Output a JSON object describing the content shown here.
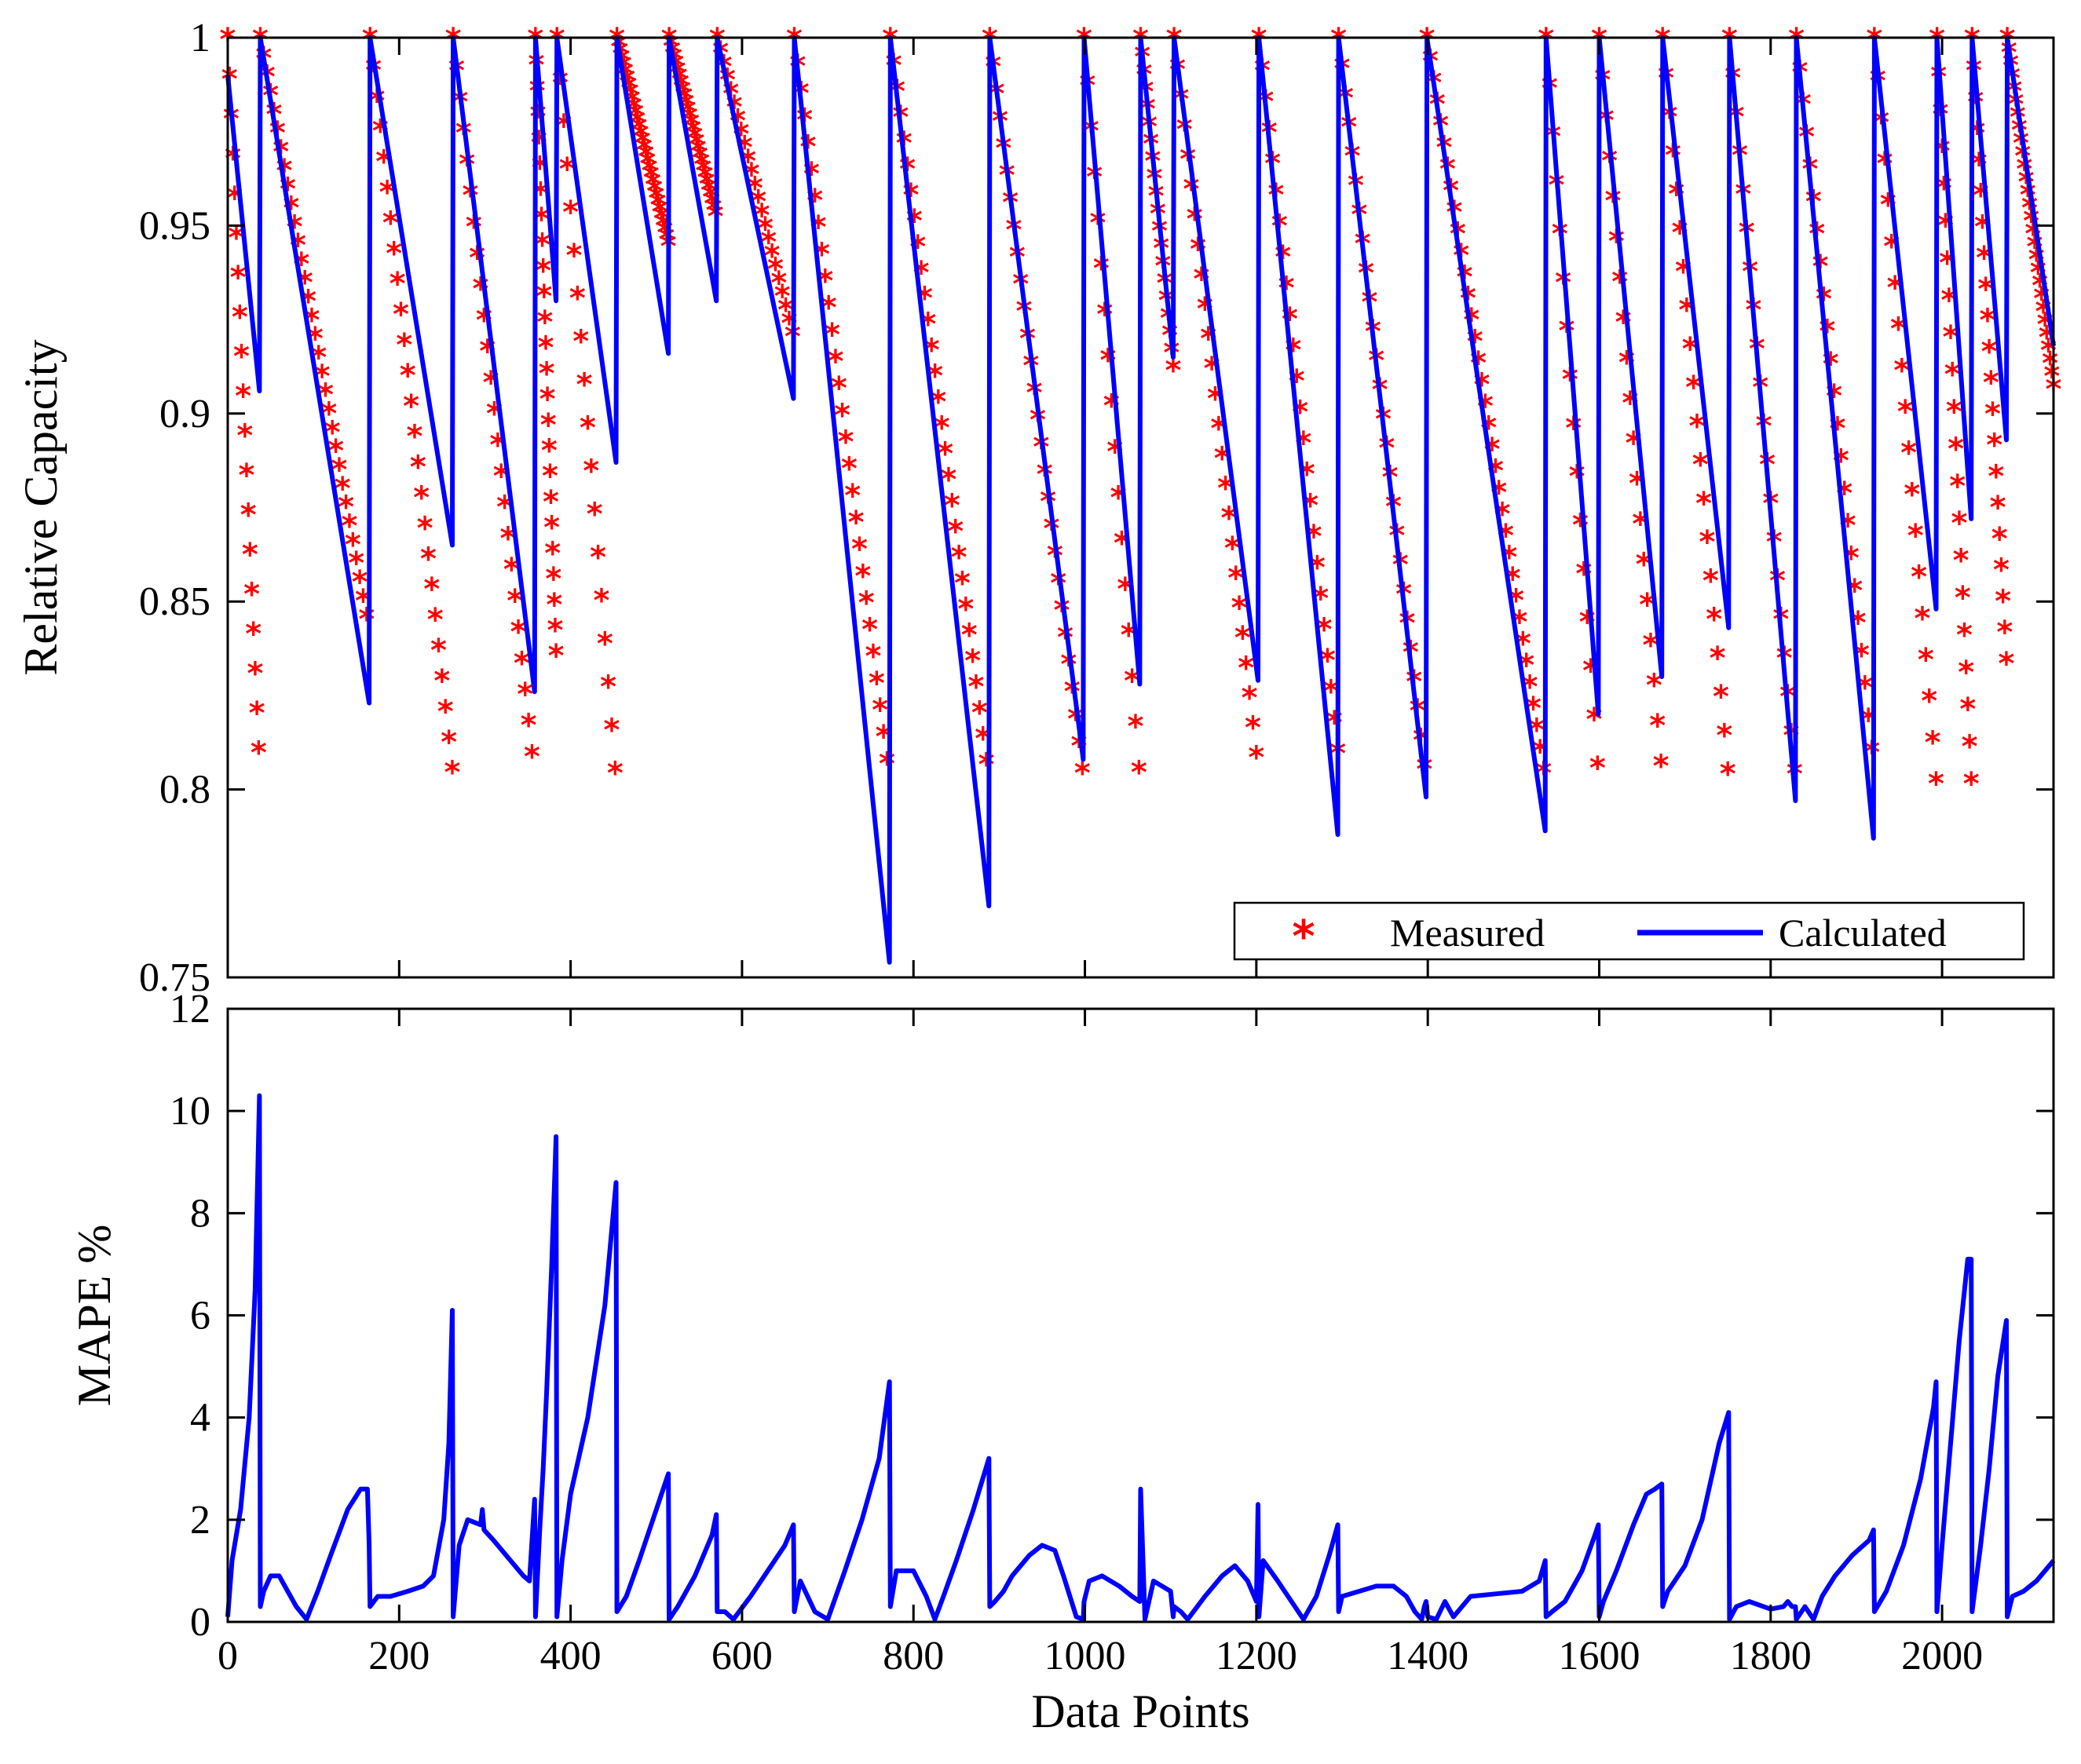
{
  "figure": {
    "xlabel": "Data Points"
  },
  "colors": {
    "measured": "#ff0000",
    "calculated": "#0000ff",
    "axes": "#000000"
  },
  "chart_data": [
    {
      "type": "scatter+line",
      "ylabel": "Relative Capacity",
      "xlim": [
        0,
        2130
      ],
      "ylim": [
        0.75,
        1.0
      ],
      "xticks": [
        200,
        400,
        600,
        800,
        1000,
        1200,
        1400,
        1600,
        1800,
        2000
      ],
      "yticks": [
        0.75,
        0.8,
        0.85,
        0.9,
        0.95,
        1
      ],
      "ytick_labels": [
        "0.75",
        "0.8",
        "0.85",
        "0.9",
        "0.95",
        "1"
      ],
      "legend": {
        "position": "bottom-right",
        "entries": [
          "Measured",
          "Calculated"
        ]
      },
      "cycles": [
        {
          "start": 0,
          "end": 37,
          "m_end": 0.805,
          "c_start": 0.99,
          "c_end": 0.906
        },
        {
          "start": 38,
          "end": 165,
          "m_end": 0.842,
          "c_start": 1.0,
          "c_end": 0.823
        },
        {
          "start": 166,
          "end": 262,
          "m_end": 0.805,
          "c_start": 1.0,
          "c_end": 0.865
        },
        {
          "start": 263,
          "end": 358,
          "m_end": 0.803,
          "c_start": 1.0,
          "c_end": 0.826
        },
        {
          "start": 359,
          "end": 383,
          "m_end": 0.836,
          "c_start": 1.0,
          "c_end": 0.93
        },
        {
          "start": 384,
          "end": 453,
          "m_end": 0.802,
          "c_start": 1.0,
          "c_end": 0.887
        },
        {
          "start": 454,
          "end": 514,
          "m_end": 0.945,
          "c_start": 1.0,
          "c_end": 0.916
        },
        {
          "start": 515,
          "end": 570,
          "m_end": 0.952,
          "c_start": 1.0,
          "c_end": 0.93
        },
        {
          "start": 571,
          "end": 660,
          "m_end": 0.92,
          "c_start": 1.0,
          "c_end": 0.904
        },
        {
          "start": 661,
          "end": 772,
          "m_end": 0.802,
          "c_start": 1.0,
          "c_end": 0.754
        },
        {
          "start": 773,
          "end": 888,
          "m_end": 0.802,
          "c_start": 1.0,
          "c_end": 0.769
        },
        {
          "start": 889,
          "end": 998,
          "m_end": 0.803,
          "c_start": 1.0,
          "c_end": 0.808
        },
        {
          "start": 999,
          "end": 1064,
          "m_end": 0.802,
          "c_start": 1.0,
          "c_end": 0.828
        },
        {
          "start": 1065,
          "end": 1103,
          "m_end": 0.912,
          "c_start": 1.0,
          "c_end": 0.915
        },
        {
          "start": 1104,
          "end": 1202,
          "m_end": 0.805,
          "c_start": 1.0,
          "c_end": 0.829
        },
        {
          "start": 1203,
          "end": 1295,
          "m_end": 0.81,
          "c_start": 1.0,
          "c_end": 0.788
        },
        {
          "start": 1296,
          "end": 1398,
          "m_end": 0.802,
          "c_start": 1.0,
          "c_end": 0.798
        },
        {
          "start": 1399,
          "end": 1537,
          "m_end": 0.802,
          "c_start": 1.0,
          "c_end": 0.789
        },
        {
          "start": 1538,
          "end": 1599,
          "m_end": 0.803,
          "c_start": 1.0,
          "c_end": 0.82
        },
        {
          "start": 1600,
          "end": 1673,
          "m_end": 0.804,
          "c_start": 1.0,
          "c_end": 0.83
        },
        {
          "start": 1674,
          "end": 1751,
          "m_end": 0.802,
          "c_start": 1.0,
          "c_end": 0.843
        },
        {
          "start": 1752,
          "end": 1829,
          "m_end": 0.802,
          "c_start": 1.0,
          "c_end": 0.797
        },
        {
          "start": 1830,
          "end": 1920,
          "m_end": 0.806,
          "c_start": 1.0,
          "c_end": 0.787
        },
        {
          "start": 1921,
          "end": 1993,
          "m_end": 0.802,
          "c_start": 1.0,
          "c_end": 0.848
        },
        {
          "start": 1994,
          "end": 2034,
          "m_end": 0.802,
          "c_start": 1.0,
          "c_end": 0.872
        },
        {
          "start": 2035,
          "end": 2075,
          "m_end": 0.834,
          "c_start": 1.0,
          "c_end": 0.893
        },
        {
          "start": 2076,
          "end": 2130,
          "m_end": 0.907,
          "c_start": 1.0,
          "c_end": 0.918
        }
      ]
    },
    {
      "type": "line",
      "ylabel": "MAPE %",
      "xlabel": "Data Points",
      "xlim": [
        0,
        2130
      ],
      "ylim": [
        0,
        12
      ],
      "xticks": [
        0,
        200,
        400,
        600,
        800,
        1000,
        1200,
        1400,
        1600,
        1800,
        2000
      ],
      "xtick_labels": [
        "0",
        "200",
        "400",
        "600",
        "800",
        "1000",
        "1200",
        "1400",
        "1600",
        "1800",
        "2000"
      ],
      "yticks": [
        0,
        2,
        4,
        6,
        8,
        10,
        12
      ],
      "ytick_labels": [
        "0",
        "2",
        "4",
        "6",
        "8",
        "10",
        "12"
      ],
      "series": [
        {
          "x": [
            0,
            5,
            15,
            25,
            32,
            37,
            38,
            42,
            50,
            60,
            70,
            80,
            92,
            105,
            120,
            140,
            155,
            163,
            165,
            166,
            175,
            190,
            210,
            228,
            240,
            252,
            258,
            262,
            263,
            270,
            280,
            295,
            297,
            299,
            310,
            330,
            345,
            352,
            358,
            359,
            364,
            368,
            372,
            378,
            383,
            384,
            390,
            400,
            420,
            440,
            453,
            454,
            465,
            480,
            500,
            514,
            515,
            525,
            545,
            565,
            570,
            571,
            580,
            590,
            610,
            630,
            650,
            660,
            661,
            668,
            685,
            700,
            720,
            740,
            760,
            772,
            773,
            780,
            800,
            815,
            825,
            835,
            850,
            870,
            888,
            889,
            895,
            905,
            915,
            935,
            950,
            965,
            975,
            990,
            998,
            999,
            1005,
            1020,
            1040,
            1055,
            1064,
            1065,
            1070,
            1080,
            1090,
            1100,
            1103,
            1104,
            1112,
            1120,
            1140,
            1160,
            1175,
            1190,
            1200,
            1202,
            1203,
            1208,
            1225,
            1245,
            1255,
            1270,
            1285,
            1295,
            1296,
            1300,
            1320,
            1340,
            1360,
            1375,
            1385,
            1393,
            1396,
            1398,
            1400,
            1410,
            1420,
            1430,
            1450,
            1480,
            1510,
            1530,
            1537,
            1538,
            1545,
            1560,
            1580,
            1595,
            1599,
            1600,
            1605,
            1620,
            1640,
            1655,
            1665,
            1673,
            1674,
            1680,
            1700,
            1720,
            1740,
            1751,
            1752,
            1760,
            1775,
            1800,
            1815,
            1820,
            1825,
            1829,
            1830,
            1840,
            1850,
            1860,
            1875,
            1895,
            1915,
            1920,
            1921,
            1935,
            1955,
            1975,
            1990,
            1993,
            1994,
            2000,
            2010,
            2020,
            2030,
            2034,
            2035,
            2045,
            2055,
            2065,
            2075,
            2076,
            2082,
            2095,
            2110,
            2120,
            2130
          ],
          "y": [
            0.1,
            1.2,
            2.2,
            4.0,
            6.5,
            10.3,
            0.3,
            0.6,
            0.9,
            0.9,
            0.6,
            0.3,
            0.05,
            0.6,
            1.3,
            2.2,
            2.6,
            2.6,
            1.5,
            0.3,
            0.5,
            0.5,
            0.6,
            0.7,
            0.9,
            2.0,
            3.5,
            6.1,
            0.1,
            1.5,
            2.0,
            1.9,
            2.2,
            1.8,
            1.6,
            1.2,
            0.9,
            0.8,
            2.4,
            0.1,
            1.8,
            3.0,
            4.5,
            7.0,
            9.5,
            0.1,
            1.2,
            2.5,
            4.0,
            6.2,
            8.6,
            0.2,
            0.5,
            1.2,
            2.2,
            2.9,
            0.05,
            0.3,
            0.9,
            1.7,
            2.1,
            0.2,
            0.2,
            0.05,
            0.5,
            1.0,
            1.5,
            1.9,
            0.2,
            0.8,
            0.2,
            0.05,
            1.0,
            2.0,
            3.2,
            4.7,
            0.3,
            1.0,
            1.0,
            0.5,
            0.05,
            0.5,
            1.2,
            2.2,
            3.2,
            0.3,
            0.4,
            0.6,
            0.9,
            1.3,
            1.5,
            1.4,
            0.9,
            0.1,
            0.05,
            0.4,
            0.8,
            0.9,
            0.7,
            0.5,
            0.4,
            2.6,
            0.05,
            0.8,
            0.7,
            0.6,
            0.1,
            0.3,
            0.2,
            0.05,
            0.5,
            0.9,
            1.1,
            0.8,
            0.4,
            2.3,
            0.1,
            1.2,
            0.8,
            0.3,
            0.05,
            0.5,
            1.3,
            1.9,
            0.2,
            0.5,
            0.6,
            0.7,
            0.7,
            0.5,
            0.2,
            0.05,
            0.3,
            0.4,
            0.1,
            0.05,
            0.4,
            0.1,
            0.5,
            0.55,
            0.6,
            0.8,
            1.2,
            0.1,
            0.2,
            0.4,
            1.0,
            1.7,
            1.9,
            0.1,
            0.4,
            1.0,
            1.9,
            2.5,
            2.6,
            2.7,
            0.3,
            0.6,
            1.1,
            2.0,
            3.5,
            4.1,
            0.05,
            0.3,
            0.4,
            0.25,
            0.3,
            0.4,
            0.3,
            0.3,
            0.05,
            0.3,
            0.05,
            0.5,
            0.9,
            1.3,
            1.6,
            1.8,
            0.2,
            0.6,
            1.5,
            2.8,
            4.2,
            4.7,
            0.2,
            1.5,
            3.5,
            5.5,
            7.1,
            7.1,
            0.2,
            1.5,
            3.0,
            4.8,
            5.9,
            0.1,
            0.5,
            0.6,
            0.8,
            1.0,
            1.2
          ]
        }
      ]
    }
  ]
}
